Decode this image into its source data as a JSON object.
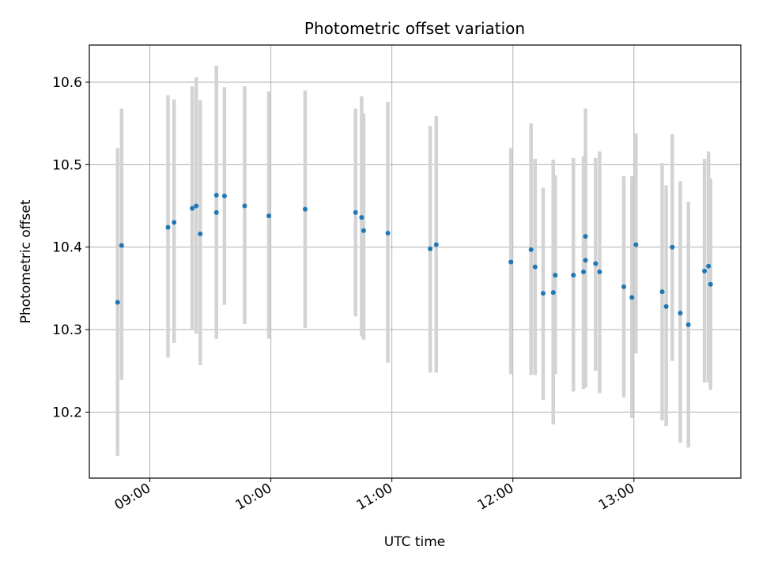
{
  "chart_data": {
    "type": "scatter",
    "title": "Photometric offset variation",
    "xlabel": "UTC time",
    "ylabel": "Photometric offset",
    "x_ticks": [
      "09:00",
      "10:00",
      "11:00",
      "12:00",
      "13:00"
    ],
    "y_ticks": [
      "10.2",
      "10.3",
      "10.4",
      "10.5",
      "10.6"
    ],
    "y_tick_values": [
      10.2,
      10.3,
      10.4,
      10.5,
      10.6
    ],
    "xlim": [
      "08:30",
      "13:53"
    ],
    "ylim": [
      10.12,
      10.645
    ],
    "grid": true,
    "colors": {
      "point": "#1f77b4",
      "errorbar": "#d3d3d3",
      "grid": "#b0b0b0"
    },
    "series": [
      {
        "x": [
          "08:44",
          "08:46",
          "09:09",
          "09:12",
          "09:21",
          "09:23",
          "09:25",
          "09:33",
          "09:33",
          "09:37",
          "09:47",
          "09:59",
          "10:17",
          "10:42",
          "10:45",
          "10:46",
          "10:58",
          "11:19",
          "11:22",
          "11:59",
          "12:09",
          "12:11",
          "12:15",
          "12:20",
          "12:21",
          "12:30",
          "12:35",
          "12:36",
          "12:36",
          "12:41",
          "12:43",
          "12:55",
          "12:59",
          "13:01",
          "13:14",
          "13:16",
          "13:19",
          "13:23",
          "13:27",
          "13:35",
          "13:37",
          "13:38"
        ],
        "y": [
          10.333,
          10.402,
          10.424,
          10.43,
          10.447,
          10.45,
          10.416,
          10.442,
          10.463,
          10.462,
          10.45,
          10.438,
          10.446,
          10.442,
          10.436,
          10.42,
          10.417,
          10.398,
          10.403,
          10.382,
          10.397,
          10.376,
          10.344,
          10.345,
          10.366,
          10.366,
          10.37,
          10.413,
          10.384,
          10.38,
          10.37,
          10.352,
          10.339,
          10.403,
          10.346,
          10.328,
          10.4,
          10.32,
          10.306,
          10.371,
          10.377,
          10.355
        ],
        "y_err_low": [
          10.147,
          10.239,
          10.266,
          10.284,
          10.3,
          10.295,
          10.257,
          10.289,
          10.289,
          10.33,
          10.307,
          10.289,
          10.302,
          10.316,
          10.292,
          10.288,
          10.26,
          10.248,
          10.248,
          10.246,
          10.245,
          10.245,
          10.215,
          10.185,
          10.246,
          10.225,
          10.228,
          10.23,
          10.23,
          10.25,
          10.223,
          10.218,
          10.193,
          10.271,
          10.19,
          10.183,
          10.262,
          10.163,
          10.157,
          10.236,
          10.236,
          10.227
        ],
        "y_err_high": [
          10.52,
          10.568,
          10.584,
          10.579,
          10.595,
          10.606,
          10.578,
          10.608,
          10.62,
          10.594,
          10.595,
          10.589,
          10.59,
          10.568,
          10.583,
          10.562,
          10.576,
          10.547,
          10.559,
          10.52,
          10.55,
          10.507,
          10.472,
          10.506,
          10.487,
          10.508,
          10.51,
          10.51,
          10.568,
          10.508,
          10.516,
          10.486,
          10.486,
          10.538,
          10.502,
          10.475,
          10.537,
          10.48,
          10.455,
          10.507,
          10.516,
          10.483
        ]
      }
    ]
  }
}
